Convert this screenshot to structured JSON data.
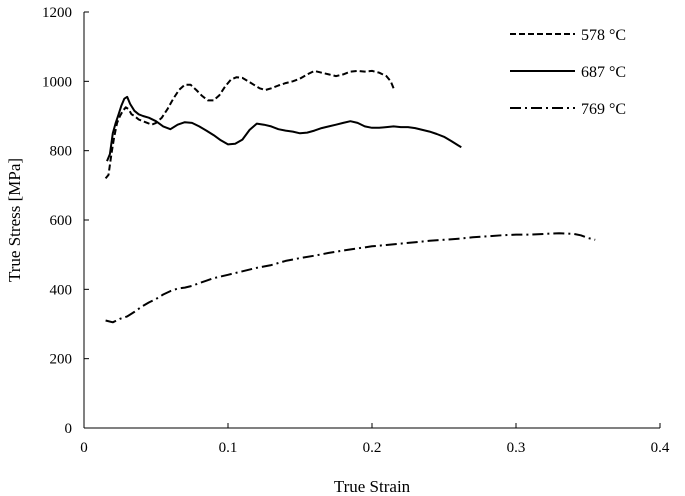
{
  "chart_data": {
    "type": "line",
    "title": "",
    "xlabel": "True Strain",
    "ylabel": "True Stress [MPa]",
    "xlim": [
      0,
      0.4
    ],
    "ylim": [
      0,
      1200
    ],
    "x_ticks": [
      0,
      0.1,
      0.2,
      0.3,
      0.4
    ],
    "x_tick_labels": [
      "0",
      "0.1",
      "0.2",
      "0.3",
      "0.4"
    ],
    "y_ticks": [
      0,
      200,
      400,
      600,
      800,
      1000,
      1200
    ],
    "y_tick_labels": [
      "0",
      "200",
      "400",
      "600",
      "800",
      "1000",
      "1200"
    ],
    "grid": false,
    "legend_position": "top-right",
    "series": [
      {
        "name": "578 °C",
        "style": "dashed",
        "color": "#000000",
        "points": [
          [
            0.015,
            720
          ],
          [
            0.017,
            730
          ],
          [
            0.019,
            790
          ],
          [
            0.021,
            840
          ],
          [
            0.023,
            880
          ],
          [
            0.025,
            900
          ],
          [
            0.027,
            915
          ],
          [
            0.029,
            925
          ],
          [
            0.031,
            920
          ],
          [
            0.033,
            905
          ],
          [
            0.035,
            900
          ],
          [
            0.038,
            890
          ],
          [
            0.041,
            885
          ],
          [
            0.044,
            880
          ],
          [
            0.047,
            875
          ],
          [
            0.05,
            880
          ],
          [
            0.054,
            895
          ],
          [
            0.058,
            920
          ],
          [
            0.062,
            950
          ],
          [
            0.066,
            975
          ],
          [
            0.07,
            990
          ],
          [
            0.074,
            990
          ],
          [
            0.078,
            975
          ],
          [
            0.082,
            958
          ],
          [
            0.086,
            945
          ],
          [
            0.09,
            945
          ],
          [
            0.094,
            960
          ],
          [
            0.098,
            985
          ],
          [
            0.102,
            1005
          ],
          [
            0.106,
            1012
          ],
          [
            0.11,
            1010
          ],
          [
            0.114,
            1000
          ],
          [
            0.118,
            990
          ],
          [
            0.122,
            980
          ],
          [
            0.126,
            975
          ],
          [
            0.13,
            980
          ],
          [
            0.135,
            988
          ],
          [
            0.14,
            995
          ],
          [
            0.145,
            1000
          ],
          [
            0.15,
            1008
          ],
          [
            0.155,
            1020
          ],
          [
            0.16,
            1030
          ],
          [
            0.165,
            1025
          ],
          [
            0.17,
            1020
          ],
          [
            0.175,
            1015
          ],
          [
            0.18,
            1020
          ],
          [
            0.185,
            1028
          ],
          [
            0.19,
            1030
          ],
          [
            0.195,
            1028
          ],
          [
            0.2,
            1030
          ],
          [
            0.205,
            1025
          ],
          [
            0.21,
            1015
          ],
          [
            0.213,
            1000
          ],
          [
            0.215,
            980
          ]
        ]
      },
      {
        "name": "687 °C",
        "style": "solid",
        "color": "#000000",
        "points": [
          [
            0.016,
            770
          ],
          [
            0.018,
            790
          ],
          [
            0.02,
            850
          ],
          [
            0.022,
            880
          ],
          [
            0.024,
            905
          ],
          [
            0.026,
            930
          ],
          [
            0.028,
            950
          ],
          [
            0.03,
            955
          ],
          [
            0.032,
            935
          ],
          [
            0.035,
            915
          ],
          [
            0.038,
            905
          ],
          [
            0.041,
            900
          ],
          [
            0.045,
            895
          ],
          [
            0.05,
            885
          ],
          [
            0.055,
            870
          ],
          [
            0.06,
            862
          ],
          [
            0.065,
            875
          ],
          [
            0.07,
            882
          ],
          [
            0.075,
            880
          ],
          [
            0.08,
            870
          ],
          [
            0.085,
            858
          ],
          [
            0.09,
            845
          ],
          [
            0.095,
            830
          ],
          [
            0.1,
            818
          ],
          [
            0.105,
            820
          ],
          [
            0.11,
            832
          ],
          [
            0.115,
            860
          ],
          [
            0.12,
            878
          ],
          [
            0.125,
            875
          ],
          [
            0.13,
            870
          ],
          [
            0.135,
            862
          ],
          [
            0.14,
            858
          ],
          [
            0.145,
            855
          ],
          [
            0.15,
            850
          ],
          [
            0.155,
            852
          ],
          [
            0.16,
            858
          ],
          [
            0.165,
            865
          ],
          [
            0.17,
            870
          ],
          [
            0.175,
            875
          ],
          [
            0.18,
            880
          ],
          [
            0.185,
            885
          ],
          [
            0.19,
            880
          ],
          [
            0.195,
            870
          ],
          [
            0.2,
            866
          ],
          [
            0.205,
            866
          ],
          [
            0.21,
            868
          ],
          [
            0.215,
            870
          ],
          [
            0.22,
            868
          ],
          [
            0.225,
            868
          ],
          [
            0.23,
            865
          ],
          [
            0.235,
            860
          ],
          [
            0.24,
            855
          ],
          [
            0.245,
            848
          ],
          [
            0.25,
            840
          ],
          [
            0.255,
            828
          ],
          [
            0.26,
            815
          ],
          [
            0.262,
            810
          ]
        ]
      },
      {
        "name": "769 °C",
        "style": "dash-dot",
        "color": "#000000",
        "points": [
          [
            0.015,
            310
          ],
          [
            0.02,
            305
          ],
          [
            0.025,
            315
          ],
          [
            0.03,
            322
          ],
          [
            0.035,
            335
          ],
          [
            0.04,
            350
          ],
          [
            0.045,
            362
          ],
          [
            0.05,
            372
          ],
          [
            0.055,
            385
          ],
          [
            0.06,
            395
          ],
          [
            0.065,
            402
          ],
          [
            0.07,
            405
          ],
          [
            0.075,
            410
          ],
          [
            0.08,
            418
          ],
          [
            0.085,
            425
          ],
          [
            0.09,
            432
          ],
          [
            0.095,
            437
          ],
          [
            0.1,
            442
          ],
          [
            0.11,
            452
          ],
          [
            0.12,
            462
          ],
          [
            0.13,
            470
          ],
          [
            0.14,
            482
          ],
          [
            0.15,
            490
          ],
          [
            0.16,
            497
          ],
          [
            0.17,
            505
          ],
          [
            0.18,
            512
          ],
          [
            0.19,
            518
          ],
          [
            0.2,
            524
          ],
          [
            0.21,
            528
          ],
          [
            0.22,
            532
          ],
          [
            0.23,
            536
          ],
          [
            0.24,
            540
          ],
          [
            0.25,
            543
          ],
          [
            0.26,
            546
          ],
          [
            0.27,
            550
          ],
          [
            0.28,
            553
          ],
          [
            0.29,
            556
          ],
          [
            0.3,
            558
          ],
          [
            0.31,
            558
          ],
          [
            0.32,
            560
          ],
          [
            0.33,
            562
          ],
          [
            0.34,
            560
          ],
          [
            0.345,
            556
          ],
          [
            0.35,
            548
          ],
          [
            0.355,
            543
          ]
        ]
      }
    ]
  }
}
